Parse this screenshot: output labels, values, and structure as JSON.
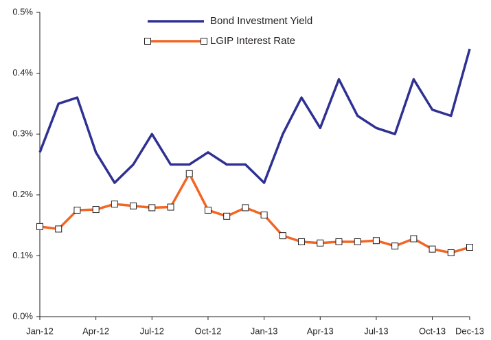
{
  "chart_data": {
    "type": "line",
    "categories": [
      "Jan-12",
      null,
      null,
      "Apr-12",
      null,
      null,
      "Jul-12",
      null,
      null,
      "Oct-12",
      null,
      null,
      "Jan-13",
      null,
      null,
      "Apr-13",
      null,
      null,
      "Jul-13",
      null,
      null,
      "Oct-13",
      null,
      "Dec-13"
    ],
    "series": [
      {
        "name": "Bond Investment Yield",
        "color": "#2e3192",
        "marker": false,
        "values": [
          0.27,
          0.35,
          0.36,
          0.27,
          0.22,
          0.25,
          0.3,
          0.25,
          0.25,
          0.27,
          0.25,
          0.25,
          0.22,
          0.3,
          0.36,
          0.31,
          0.39,
          0.33,
          0.31,
          0.3,
          0.39,
          0.34,
          0.33,
          0.44
        ]
      },
      {
        "name": "LGIP Interest Rate",
        "color": "#f26522",
        "marker": true,
        "values": [
          0.148,
          0.144,
          0.175,
          0.176,
          0.185,
          0.182,
          0.179,
          0.18,
          0.235,
          0.175,
          0.165,
          0.179,
          0.167,
          0.133,
          0.123,
          0.121,
          0.123,
          0.123,
          0.125,
          0.116,
          0.128,
          0.111,
          0.105,
          0.114
        ]
      }
    ],
    "ylim": [
      0,
      0.5
    ],
    "yticks": [
      {
        "value": 0,
        "label": "0.0%"
      },
      {
        "value": 0.1,
        "label": "0.1%"
      },
      {
        "value": 0.2,
        "label": "0.2%"
      },
      {
        "value": 0.3,
        "label": "0.3%"
      },
      {
        "value": 0.4,
        "label": "0.4%"
      },
      {
        "value": 0.5,
        "label": "0.5%"
      }
    ],
    "grid": false,
    "legend": "top"
  }
}
